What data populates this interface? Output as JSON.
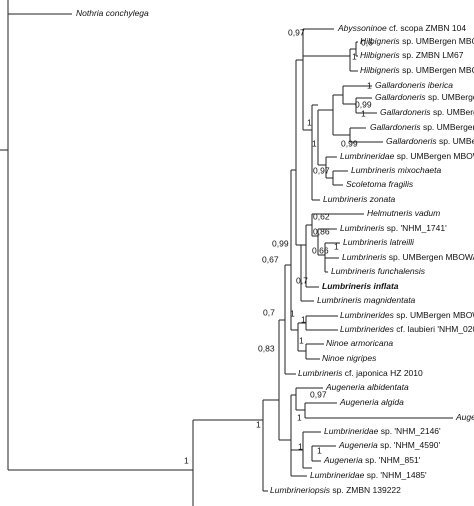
{
  "taxa": [
    {
      "italic": "Nothria conchylega"
    },
    {
      "italic": "Abyssoninoe",
      "plain": "cf. scopa ZMBN 104"
    },
    {
      "italic": "Hilbigneris",
      "plain": "sp. UMBergen MBC"
    },
    {
      "italic": "Hilbigneris",
      "plain": "sp. ZMBN LM67"
    },
    {
      "italic": "Hilbigneris",
      "plain": "sp. UMBergen MBC"
    },
    {
      "italic": "Gallardoneris iberica"
    },
    {
      "italic": "Gallardoneris",
      "plain": "sp. UMBergen"
    },
    {
      "italic": "Gallardoneris",
      "plain": "sp. UMBerger"
    },
    {
      "italic": "Gallardoneris",
      "plain": "sp. UMBerger"
    },
    {
      "italic": "Gallardoneris",
      "plain": "sp. UMBer"
    },
    {
      "italic": "Lumbrineridae",
      "plain": "sp. UMBergen MBOW"
    },
    {
      "italic": "Lumbrineris mixochaeta"
    },
    {
      "italic": "Scoletoma fragilis"
    },
    {
      "italic": "Lumbrineris zonata"
    },
    {
      "italic": "Helmutneris vadum"
    },
    {
      "italic": "Lumbrineris",
      "plain": "sp. 'NHM_1741'"
    },
    {
      "italic": "Lumbrineris latreilli"
    },
    {
      "italic": "Lumbrineris",
      "plain": "sp. UMBergen MBOWA"
    },
    {
      "italic": "Lumbrineris funchalensis"
    },
    {
      "italic": "Lumbrineris inflata"
    },
    {
      "italic": "Lumbrineris magnidentata"
    },
    {
      "italic": "Lumbrinerides",
      "plain": "sp. UMBergen MBOW"
    },
    {
      "italic": "Lumbrinerides",
      "plain": "cf. laubieri 'NHM_020"
    },
    {
      "italic": "Ninoe armoricana"
    },
    {
      "italic": "Ninoe nigripes"
    },
    {
      "italic": "Lumbrineris",
      "plain": "cf. japonica HZ 2010"
    },
    {
      "italic": "Augeneria albidentata"
    },
    {
      "italic": "Augeneria algida"
    },
    {
      "italic": "Auge"
    },
    {
      "italic": "Lumbrineridae",
      "plain": "sp. 'NHM_2146'"
    },
    {
      "italic": "Augeneria",
      "plain": "sp. 'NHM_4590'"
    },
    {
      "italic": "Augeneria",
      "plain": "sp. 'NHM_851'"
    },
    {
      "italic": "Lumbrineridae",
      "plain": "sp. 'NHM_1485'"
    },
    {
      "italic": "Lumbrineriopsis",
      "plain": "sp. ZMBN 139222"
    }
  ],
  "support": [
    "0,97",
    "0,6",
    "1",
    "1",
    "0,99",
    "1",
    "1",
    "0,99",
    "1",
    "0,97",
    "0,99",
    "0,62",
    "0,86",
    "1",
    "0,66",
    "0,7",
    "0,67",
    "0,7",
    "1",
    "1",
    "1",
    "0,83",
    "0,97",
    "1",
    "1",
    "1",
    "1",
    "1"
  ]
}
